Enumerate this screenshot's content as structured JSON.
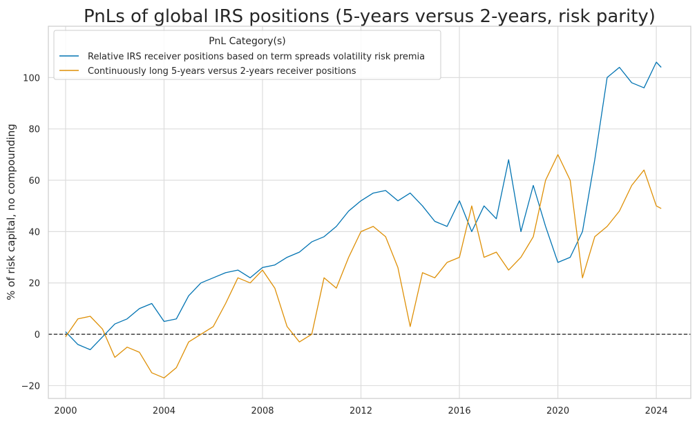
{
  "chart_data": {
    "type": "line",
    "title": "PnLs of global IRS positions (5-years versus 2-years, risk parity)",
    "xlabel": "",
    "ylabel": "% of risk capital, no compounding",
    "x_ticks": [
      "2000",
      "2004",
      "2008",
      "2012",
      "2016",
      "2020",
      "2024"
    ],
    "y_ticks": [
      "-20",
      "0",
      "20",
      "40",
      "60",
      "80",
      "100"
    ],
    "xlim": [
      1999.3,
      2025.4
    ],
    "ylim": [
      -25,
      120
    ],
    "grid": true,
    "reference_line": {
      "y": 0,
      "style": "dashed",
      "color": "#000000"
    },
    "legend": {
      "title": "PnL Category(s)",
      "placement": "top-left"
    },
    "x": [
      2000.0,
      2000.5,
      2001.0,
      2001.5,
      2002.0,
      2002.5,
      2003.0,
      2003.5,
      2004.0,
      2004.5,
      2005.0,
      2005.5,
      2006.0,
      2006.5,
      2007.0,
      2007.5,
      2008.0,
      2008.5,
      2009.0,
      2009.5,
      2010.0,
      2010.5,
      2011.0,
      2011.5,
      2012.0,
      2012.5,
      2013.0,
      2013.5,
      2014.0,
      2014.5,
      2015.0,
      2015.5,
      2016.0,
      2016.5,
      2017.0,
      2017.5,
      2018.0,
      2018.5,
      2019.0,
      2019.5,
      2020.0,
      2020.5,
      2021.0,
      2021.5,
      2022.0,
      2022.5,
      2023.0,
      2023.5,
      2024.0,
      2024.2
    ],
    "series": [
      {
        "name": "Relative IRS receiver positions based on term spreads volatility risk premia",
        "color": "#0173b2",
        "values": [
          1,
          -4,
          -6,
          -1,
          4,
          6,
          10,
          12,
          5,
          6,
          15,
          20,
          22,
          24,
          25,
          22,
          26,
          27,
          30,
          32,
          36,
          38,
          42,
          48,
          52,
          55,
          56,
          52,
          55,
          50,
          44,
          42,
          52,
          40,
          50,
          45,
          68,
          40,
          58,
          42,
          28,
          30,
          40,
          68,
          100,
          104,
          98,
          96,
          106,
          104
        ]
      },
      {
        "name": "Continuously long 5-years versus 2-years receiver positions",
        "color": "#de8f05",
        "values": [
          -1,
          6,
          7,
          2,
          -9,
          -5,
          -7,
          -15,
          -17,
          -13,
          -3,
          0,
          3,
          12,
          22,
          20,
          25,
          18,
          3,
          -3,
          0,
          22,
          18,
          30,
          40,
          42,
          38,
          26,
          3,
          24,
          22,
          28,
          30,
          50,
          30,
          32,
          25,
          30,
          38,
          60,
          70,
          60,
          22,
          38,
          42,
          48,
          58,
          64,
          50,
          49
        ]
      }
    ]
  }
}
